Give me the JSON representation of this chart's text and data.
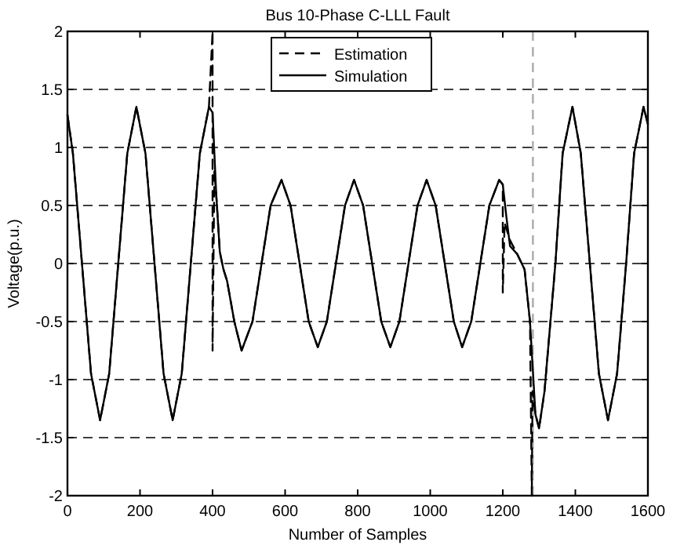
{
  "chart_data": {
    "type": "line",
    "title": "Bus 10-Phase C-LLL Fault",
    "xlabel": "Number of Samples",
    "ylabel": "Voltage(p.u.)",
    "xlim": [
      0,
      1600
    ],
    "xticks": [
      0,
      200,
      400,
      600,
      800,
      1000,
      1200,
      1400,
      1600
    ],
    "ylim": [
      -2,
      2
    ],
    "yticks": [
      -2,
      -1.5,
      -1,
      -0.5,
      0,
      0.5,
      1,
      1.5,
      2
    ],
    "grid": "y",
    "legend": "top right",
    "ref_lines": [
      {
        "axis": "x",
        "value": 1283,
        "color": "#aaaaaa",
        "line_style": "dashed"
      }
    ],
    "series": [
      {
        "name": "Estimation",
        "color": "#000000",
        "line_style": "dashed",
        "x": [
          0,
          15,
          40,
          65,
          90,
          115,
          140,
          165,
          190,
          215,
          240,
          265,
          290,
          315,
          340,
          365,
          390,
          400,
          400,
          405,
          410,
          420,
          430,
          440,
          460,
          480,
          510,
          535,
          560,
          590,
          615,
          640,
          665,
          690,
          715,
          740,
          765,
          790,
          815,
          840,
          865,
          890,
          915,
          940,
          965,
          990,
          1015,
          1040,
          1065,
          1088,
          1113,
          1138,
          1163,
          1190,
          1200,
          1200,
          1205,
          1220,
          1240,
          1260,
          1275,
          1280,
          1282,
          1290,
          1300,
          1315,
          1345,
          1365,
          1392,
          1415,
          1440,
          1465,
          1490,
          1515,
          1540,
          1562,
          1588,
          1600
        ],
        "values": [
          1.28,
          0.95,
          0,
          -0.95,
          -1.35,
          -0.95,
          0,
          0.95,
          1.35,
          0.95,
          0,
          -0.95,
          -1.35,
          -0.95,
          0,
          0.95,
          1.35,
          2,
          -0.75,
          0.8,
          0.6,
          0.1,
          -0.05,
          -0.15,
          -0.5,
          -0.75,
          -0.5,
          0,
          0.5,
          0.72,
          0.5,
          0,
          -0.5,
          -0.72,
          -0.5,
          0,
          0.5,
          0.72,
          0.5,
          0,
          -0.5,
          -0.72,
          -0.5,
          0,
          0.5,
          0.72,
          0.5,
          0,
          -0.5,
          -0.72,
          -0.5,
          0,
          0.5,
          0.72,
          0.68,
          -0.25,
          0.35,
          0.2,
          0.08,
          -0.05,
          -0.5,
          -2,
          -1.1,
          -1.3,
          -1.42,
          -1.1,
          0,
          0.95,
          1.35,
          0.95,
          0,
          -0.95,
          -1.35,
          -0.95,
          0,
          0.95,
          1.35,
          1.2
        ]
      },
      {
        "name": "Simulation",
        "color": "#000000",
        "line_style": "solid",
        "x": [
          0,
          15,
          40,
          65,
          90,
          115,
          140,
          165,
          190,
          215,
          240,
          265,
          290,
          315,
          340,
          365,
          390,
          400,
          410,
          420,
          430,
          440,
          460,
          480,
          510,
          535,
          560,
          590,
          615,
          640,
          665,
          690,
          715,
          740,
          765,
          790,
          815,
          840,
          865,
          890,
          915,
          940,
          965,
          990,
          1015,
          1040,
          1065,
          1088,
          1113,
          1138,
          1163,
          1190,
          1200,
          1210,
          1220,
          1240,
          1260,
          1275,
          1290,
          1300,
          1315,
          1345,
          1365,
          1392,
          1415,
          1440,
          1465,
          1490,
          1515,
          1540,
          1562,
          1588,
          1600
        ],
        "values": [
          1.28,
          0.95,
          0,
          -0.95,
          -1.35,
          -0.95,
          0,
          0.95,
          1.35,
          0.95,
          0,
          -0.95,
          -1.35,
          -0.95,
          0,
          0.95,
          1.35,
          1.3,
          0.6,
          0.1,
          -0.05,
          -0.15,
          -0.5,
          -0.75,
          -0.5,
          0,
          0.5,
          0.72,
          0.5,
          0,
          -0.5,
          -0.72,
          -0.5,
          0,
          0.5,
          0.72,
          0.5,
          0,
          -0.5,
          -0.72,
          -0.5,
          0,
          0.5,
          0.72,
          0.5,
          0,
          -0.5,
          -0.72,
          -0.5,
          0,
          0.5,
          0.72,
          0.68,
          0.4,
          0.15,
          0.08,
          -0.05,
          -0.5,
          -1.3,
          -1.42,
          -1.1,
          0,
          0.95,
          1.35,
          0.95,
          0,
          -0.95,
          -1.35,
          -0.95,
          0,
          0.95,
          1.35,
          1.2
        ]
      }
    ]
  }
}
